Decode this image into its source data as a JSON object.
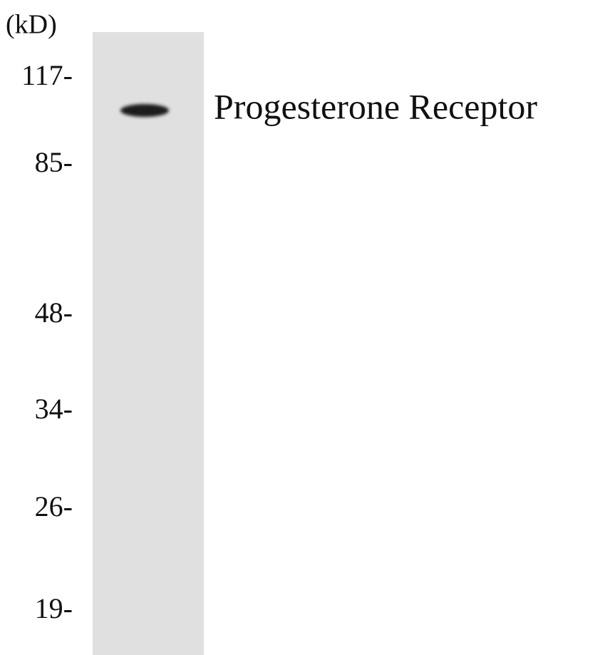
{
  "unit_label": "(kD)",
  "markers": [
    "117-",
    "85-",
    "48-",
    "34-",
    "26-",
    "19-"
  ],
  "band_label": "Progesterone Receptor"
}
